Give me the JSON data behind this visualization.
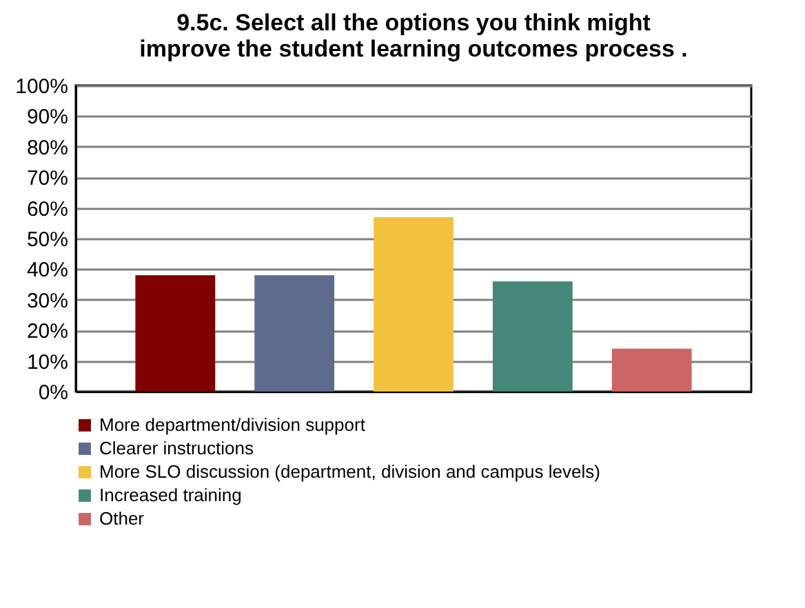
{
  "chart_data": {
    "type": "bar",
    "title": "9.5c. Select all the options you think might improve the student learning outcomes process .",
    "categories": [
      null
    ],
    "series": [
      {
        "name": "More department/division support",
        "color": "#800000",
        "values": [
          38
        ]
      },
      {
        "name": "Clearer instructions",
        "color": "#5f6b8e",
        "values": [
          38
        ]
      },
      {
        "name": "More SLO discussion (department, division and campus levels)",
        "color": "#f2c340",
        "values": [
          57
        ]
      },
      {
        "name": "Increased training",
        "color": "#458779",
        "values": [
          36
        ]
      },
      {
        "name": "Other",
        "color": "#cc6565",
        "values": [
          14
        ]
      }
    ],
    "ylim": [
      0,
      100
    ],
    "yticks": [
      {
        "value": 0,
        "label": "0%"
      },
      {
        "value": 10,
        "label": "10%"
      },
      {
        "value": 20,
        "label": "20%"
      },
      {
        "value": 30,
        "label": "30%"
      },
      {
        "value": 40,
        "label": "40%"
      },
      {
        "value": 50,
        "label": "50%"
      },
      {
        "value": 60,
        "label": "60%"
      },
      {
        "value": 70,
        "label": "70%"
      },
      {
        "value": 80,
        "label": "80%"
      },
      {
        "value": 90,
        "label": "90%"
      },
      {
        "value": 100,
        "label": "100%"
      }
    ],
    "grid": "y",
    "legend": "bottom",
    "tick_labels": "y"
  }
}
